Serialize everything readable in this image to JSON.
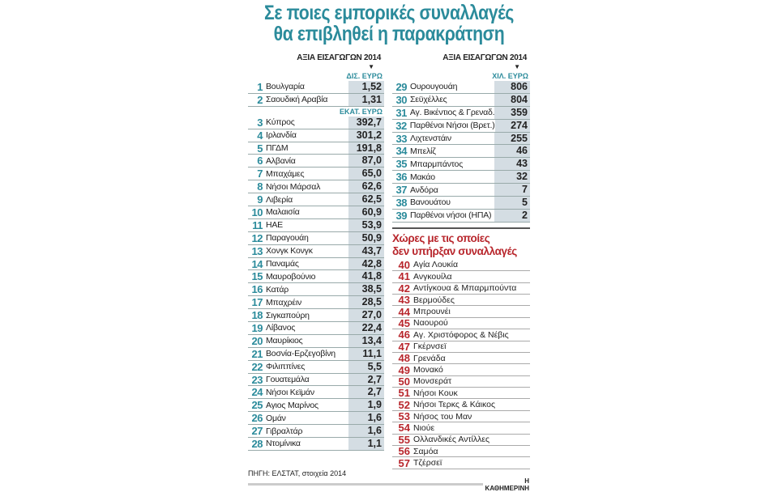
{
  "title": [
    "Σε ποιες εμπορικές συναλλαγές",
    "θα επιβληθεί η παρακράτηση"
  ],
  "column_header": "ΑΞΙΑ ΕΙΣΑΓΩΓΩΝ 2014",
  "chart_data": {
    "type": "table",
    "title": "Σε ποιες εμπορικές συναλλαγές θα επιβληθεί η παρακράτηση",
    "groups": [
      {
        "unit": "ΔΙΣ. ΕΥΡΩ",
        "rows": [
          {
            "rank": "1",
            "country": "Βουλγαρία",
            "value": "1,52"
          },
          {
            "rank": "2",
            "country": "Σαουδική Αραβία",
            "value": "1,31"
          }
        ]
      },
      {
        "unit": "ΕΚΑΤ. ΕΥΡΩ",
        "rows": [
          {
            "rank": "3",
            "country": "Κύπρος",
            "value": "392,7"
          },
          {
            "rank": "4",
            "country": "Ιρλανδία",
            "value": "301,2"
          },
          {
            "rank": "5",
            "country": "ΠΓΔΜ",
            "value": "191,8"
          },
          {
            "rank": "6",
            "country": "Αλβανία",
            "value": "87,0"
          },
          {
            "rank": "7",
            "country": "Μπαχάμες",
            "value": "65,0"
          },
          {
            "rank": "8",
            "country": "Νήσοι Μάρσαλ",
            "value": "62,6"
          },
          {
            "rank": "9",
            "country": "Λιβερία",
            "value": "62,5"
          },
          {
            "rank": "10",
            "country": "Μαλαισία",
            "value": "60,9"
          },
          {
            "rank": "11",
            "country": "ΗΑΕ",
            "value": "53,9"
          },
          {
            "rank": "12",
            "country": "Παραγουάη",
            "value": "50,9"
          },
          {
            "rank": "13",
            "country": "Χονγκ Κονγκ",
            "value": "43,7"
          },
          {
            "rank": "14",
            "country": "Παναμάς",
            "value": "42,8"
          },
          {
            "rank": "15",
            "country": "Μαυροβούνιο",
            "value": "41,8"
          },
          {
            "rank": "16",
            "country": "Κατάρ",
            "value": "38,5"
          },
          {
            "rank": "17",
            "country": "Μπαχρέιν",
            "value": "28,5"
          },
          {
            "rank": "18",
            "country": "Σιγκαπούρη",
            "value": "27,0"
          },
          {
            "rank": "19",
            "country": "Λίβανος",
            "value": "22,4"
          },
          {
            "rank": "20",
            "country": "Μαυρίκιος",
            "value": "13,4"
          },
          {
            "rank": "21",
            "country": "Βοσνία-Ερζεγοβίνη",
            "value": "11,1"
          },
          {
            "rank": "22",
            "country": "Φιλιππίνες",
            "value": "5,5"
          },
          {
            "rank": "23",
            "country": "Γουατεμάλα",
            "value": "2,7"
          },
          {
            "rank": "24",
            "country": "Νήσοι Κεϊμάν",
            "value": "2,7"
          },
          {
            "rank": "25",
            "country": "Αγιος Μαρίνος",
            "value": "1,9"
          },
          {
            "rank": "26",
            "country": "Ομάν",
            "value": "1,6"
          },
          {
            "rank": "27",
            "country": "Γιβραλτάρ",
            "value": "1,6"
          },
          {
            "rank": "28",
            "country": "Ντομίνικα",
            "value": "1,1"
          }
        ]
      },
      {
        "unit": "ΧΙΛ. ΕΥΡΩ",
        "rows": [
          {
            "rank": "29",
            "country": "Ουρουγουάη",
            "value": "806"
          },
          {
            "rank": "30",
            "country": "Σεϋχέλλες",
            "value": "804"
          },
          {
            "rank": "31",
            "country": "Αγ. Βικέντιος & Γρεναδ.",
            "value": "359"
          },
          {
            "rank": "32",
            "country": "Παρθένοι Νήσοι (Βρετ.)",
            "value": "274"
          },
          {
            "rank": "33",
            "country": "Λιχτενστάιν",
            "value": "255"
          },
          {
            "rank": "34",
            "country": "Μπελίζ",
            "value": "46"
          },
          {
            "rank": "35",
            "country": "Μπαρμπάντος",
            "value": "43"
          },
          {
            "rank": "36",
            "country": "Μακάο",
            "value": "32"
          },
          {
            "rank": "37",
            "country": "Ανδόρα",
            "value": "7"
          },
          {
            "rank": "38",
            "country": "Βανουάτου",
            "value": "5"
          },
          {
            "rank": "39",
            "country": "Παρθένοι νήσοι (ΗΠΑ)",
            "value": "2"
          }
        ]
      }
    ],
    "no_trade": {
      "title": [
        "Χώρες με τις οποίες",
        "δεν υπήρξαν συναλλαγές"
      ],
      "rows": [
        {
          "rank": "40",
          "country": "Αγία Λουκία"
        },
        {
          "rank": "41",
          "country": "Ανγκουίλα"
        },
        {
          "rank": "42",
          "country": "Αντίγκουα & Μπαρμπούντα"
        },
        {
          "rank": "43",
          "country": "Βερμούδες"
        },
        {
          "rank": "44",
          "country": "Μπρουνέι"
        },
        {
          "rank": "45",
          "country": "Ναουρού"
        },
        {
          "rank": "46",
          "country": "Αγ. Χριστόφορος & Νέβις"
        },
        {
          "rank": "47",
          "country": "Γκέρνσεϊ"
        },
        {
          "rank": "48",
          "country": "Γρενάδα"
        },
        {
          "rank": "49",
          "country": "Μονακό"
        },
        {
          "rank": "50",
          "country": "Μονσεράτ"
        },
        {
          "rank": "51",
          "country": "Νήσοι Κουκ"
        },
        {
          "rank": "52",
          "country": "Νήσοι Τερκς & Κάικος"
        },
        {
          "rank": "53",
          "country": "Νήσος του Μαν"
        },
        {
          "rank": "54",
          "country": "Νιούε"
        },
        {
          "rank": "55",
          "country": "Ολλανδικές Αντίλλες"
        },
        {
          "rank": "56",
          "country": "Σαμόα"
        },
        {
          "rank": "57",
          "country": "Τζέρσεϊ"
        }
      ]
    }
  },
  "source": "ΠΗΓΗ: ΕΛΣΤΑΤ, στοιχεία 2014",
  "brand": "Η ΚΑΘΗΜΕΡΙΝΗ",
  "colors": {
    "accent": "#2b8b9b",
    "red": "#b8262c",
    "cell": "#d4dde3"
  }
}
